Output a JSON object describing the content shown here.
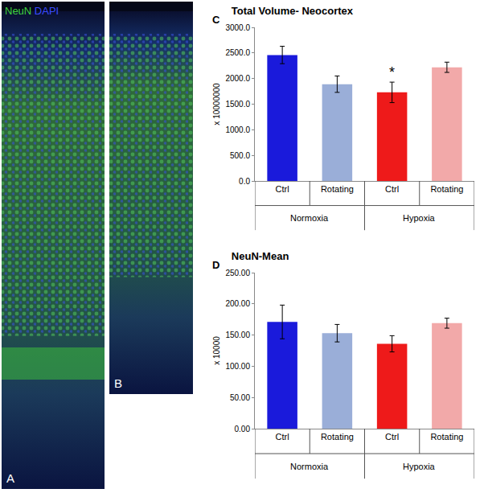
{
  "image_panels": [
    {
      "label": "A",
      "legend": [
        {
          "text": "NeuN",
          "color": "#3fd23f"
        },
        {
          "text": "DAPI",
          "color": "#3a4cff"
        }
      ]
    },
    {
      "label": "B"
    }
  ],
  "chart_data": [
    {
      "type": "bar",
      "panel": "C",
      "title": "Total Volume- Neocortex",
      "y_label": "x 10000000",
      "categories": [
        "Ctrl",
        "Rotating",
        "Ctrl",
        "Rotating"
      ],
      "groups": [
        "Normoxia",
        "Normoxia",
        "Hypoxia",
        "Hypoxia"
      ],
      "values": [
        2460,
        1890,
        1730,
        2220
      ],
      "errors": [
        170,
        160,
        200,
        100
      ],
      "colors": [
        "#1a1adb",
        "#9aaed8",
        "#ee1a1a",
        "#f2a9a9"
      ],
      "ylim": [
        0,
        3000
      ],
      "yticks": [
        {
          "value": 0,
          "label": "0.0"
        },
        {
          "value": 500,
          "label": "500.0"
        },
        {
          "value": 1000,
          "label": "1000.0"
        },
        {
          "value": 1500,
          "label": "1500.0"
        },
        {
          "value": 2000,
          "label": "2000.0"
        },
        {
          "value": 2500,
          "label": "2500.0"
        },
        {
          "value": 3000,
          "label": "3000.0"
        }
      ],
      "grid": false,
      "annotations": [
        {
          "text": "*",
          "index": 2
        }
      ]
    },
    {
      "type": "bar",
      "panel": "D",
      "title": "NeuN-Mean",
      "y_label": "x 10000",
      "categories": [
        "Ctrl",
        "Rotating",
        "Ctrl",
        "Rotating"
      ],
      "groups": [
        "Normoxia",
        "Normoxia",
        "Hypoxia",
        "Hypoxia"
      ],
      "values": [
        171,
        153,
        136,
        169
      ],
      "errors": [
        27,
        14,
        13,
        8
      ],
      "colors": [
        "#1a1adb",
        "#9aaed8",
        "#ee1a1a",
        "#f2a9a9"
      ],
      "ylim": [
        0,
        250
      ],
      "yticks": [
        {
          "value": 0,
          "label": "0.00"
        },
        {
          "value": 50,
          "label": "50.00"
        },
        {
          "value": 100,
          "label": "100.00"
        },
        {
          "value": 150,
          "label": "150.00"
        },
        {
          "value": 200,
          "label": "200.00"
        },
        {
          "value": 250,
          "label": "250.00"
        }
      ],
      "grid": false,
      "annotations": []
    }
  ]
}
